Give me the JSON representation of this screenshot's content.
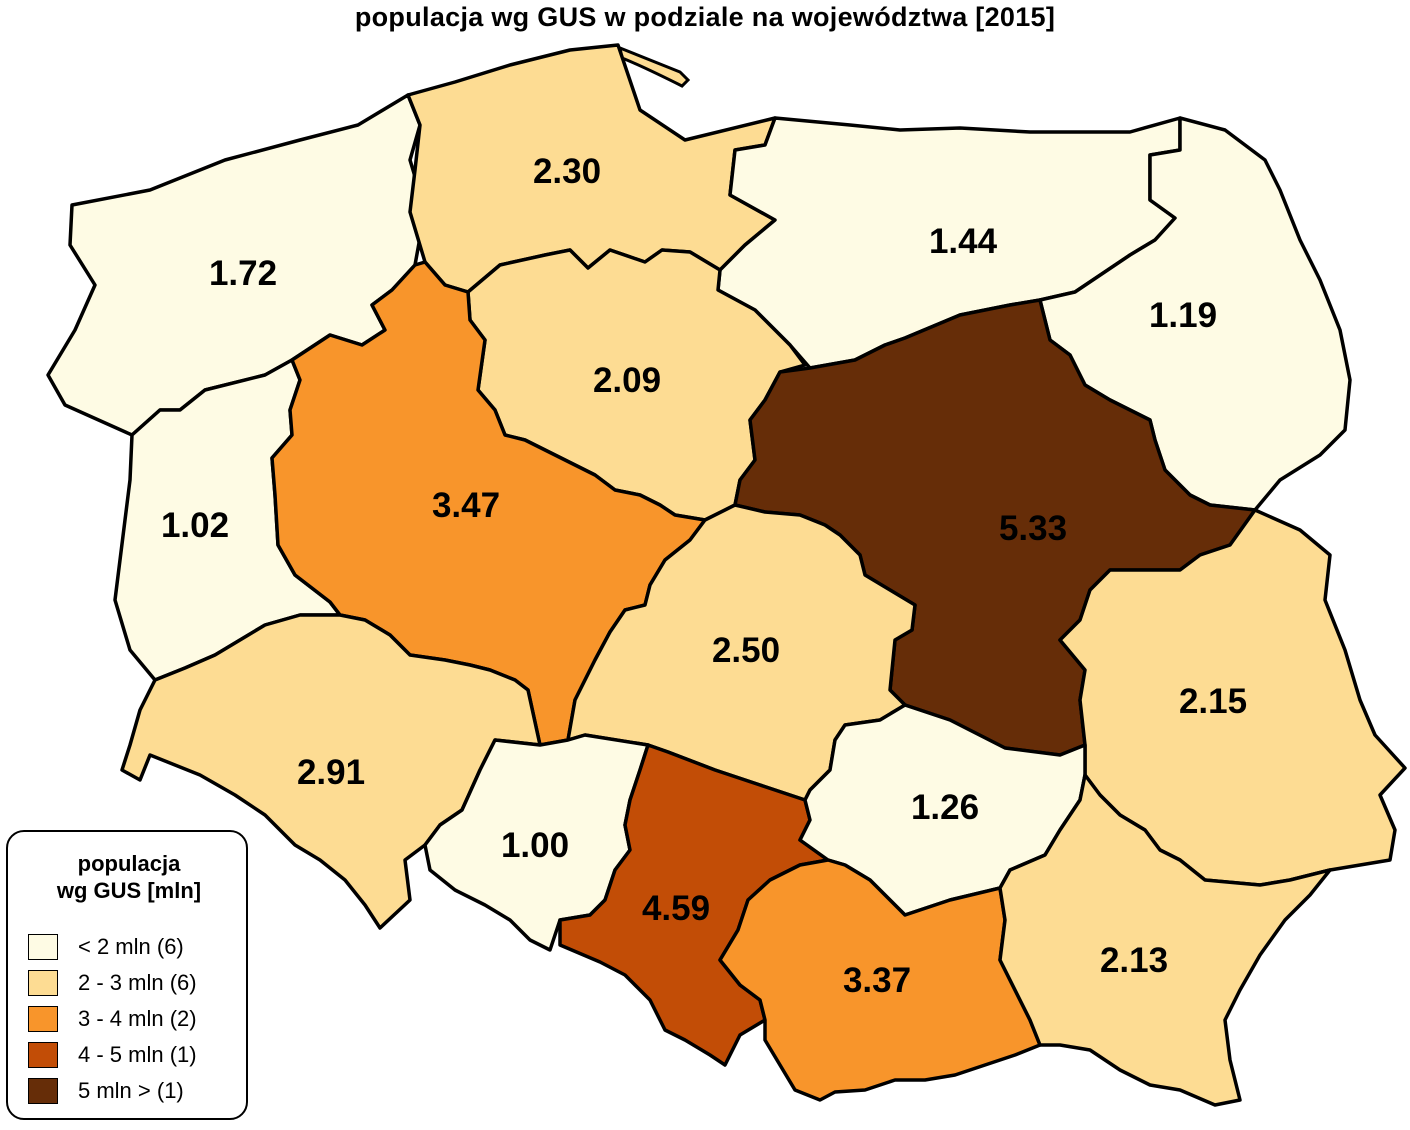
{
  "title": "populacja wg GUS w podziale na województwa [2015]",
  "colors": {
    "lt2": "#FEFBE4",
    "2to3": "#FDDC93",
    "3to4": "#F8952B",
    "4to5": "#C24D06",
    "gt5": "#662D08"
  },
  "regions": [
    {
      "id": "west-pomeranian",
      "value": "1.72",
      "klass": "lt2"
    },
    {
      "id": "pomeranian",
      "value": "2.30",
      "klass": "2to3"
    },
    {
      "id": "warmian-masurian",
      "value": "1.44",
      "klass": "lt2"
    },
    {
      "id": "podlaskie",
      "value": "1.19",
      "klass": "lt2"
    },
    {
      "id": "kuyavian-pomeranian",
      "value": "2.09",
      "klass": "2to3"
    },
    {
      "id": "lubusz",
      "value": "1.02",
      "klass": "lt2"
    },
    {
      "id": "greater-poland",
      "value": "3.47",
      "klass": "3to4"
    },
    {
      "id": "masovian",
      "value": "5.33",
      "klass": "gt5"
    },
    {
      "id": "lodz",
      "value": "2.50",
      "klass": "2to3"
    },
    {
      "id": "lublin",
      "value": "2.15",
      "klass": "2to3"
    },
    {
      "id": "lower-silesian",
      "value": "2.91",
      "klass": "2to3"
    },
    {
      "id": "opole",
      "value": "1.00",
      "klass": "lt2"
    },
    {
      "id": "silesian",
      "value": "4.59",
      "klass": "4to5"
    },
    {
      "id": "swietokrzyskie",
      "value": "1.26",
      "klass": "lt2"
    },
    {
      "id": "lesser-poland",
      "value": "3.37",
      "klass": "3to4"
    },
    {
      "id": "subcarpathian",
      "value": "2.13",
      "klass": "2to3"
    }
  ],
  "legend": {
    "title_line1": "populacja",
    "title_line2": "wg GUS [mln]",
    "items": [
      {
        "label": "< 2 mln (6)",
        "klass": "lt2"
      },
      {
        "label": "2 - 3 mln (6)",
        "klass": "2to3"
      },
      {
        "label": "3 - 4 mln (2)",
        "klass": "3to4"
      },
      {
        "label": "4 - 5 mln (1)",
        "klass": "4to5"
      },
      {
        "label": "5 mln > (1)",
        "klass": "gt5"
      }
    ]
  }
}
